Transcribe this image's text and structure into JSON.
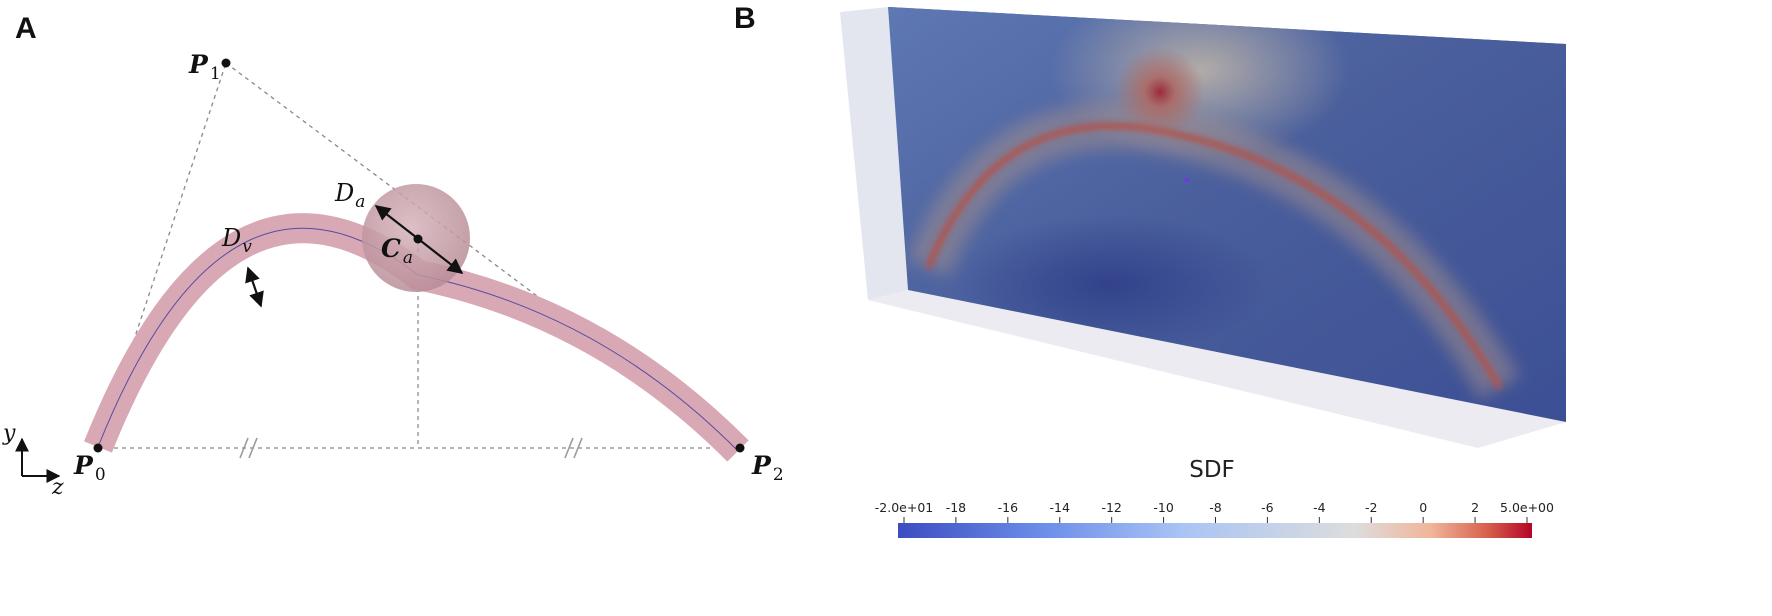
{
  "panels": [
    {
      "id": "A",
      "label": "A"
    },
    {
      "id": "B",
      "label": "B"
    }
  ],
  "panel_a": {
    "points": [
      {
        "id": "P0",
        "symbol": "P",
        "subscript": "0"
      },
      {
        "id": "P1",
        "symbol": "P",
        "subscript": "1"
      },
      {
        "id": "P2",
        "symbol": "P",
        "subscript": "2"
      },
      {
        "id": "Ca",
        "symbol": "C",
        "subscript": "a"
      }
    ],
    "dimensions": [
      {
        "id": "Dv",
        "symbol": "D",
        "subscript": "v"
      },
      {
        "id": "Da",
        "symbol": "D",
        "subscript": "a"
      }
    ],
    "axes": {
      "vertical": "y",
      "horizontal": "z"
    },
    "colors": {
      "vessel": "#d8a8b4",
      "aneurysm": "#c9a3ac",
      "centerline": "#5a4aa0"
    }
  },
  "panel_b": {
    "colorbar": {
      "title": "SDF",
      "ticks": [
        "-2.0e+01",
        "-18",
        "-16",
        "-14",
        "-12",
        "-10",
        "-8",
        "-6",
        "-4",
        "-2",
        "0",
        "2",
        "5.0e+00"
      ],
      "min": -20,
      "max": 5,
      "colors": {
        "low": "#3b4cc0",
        "mid": "#dddddd",
        "high": "#b40426"
      }
    }
  }
}
